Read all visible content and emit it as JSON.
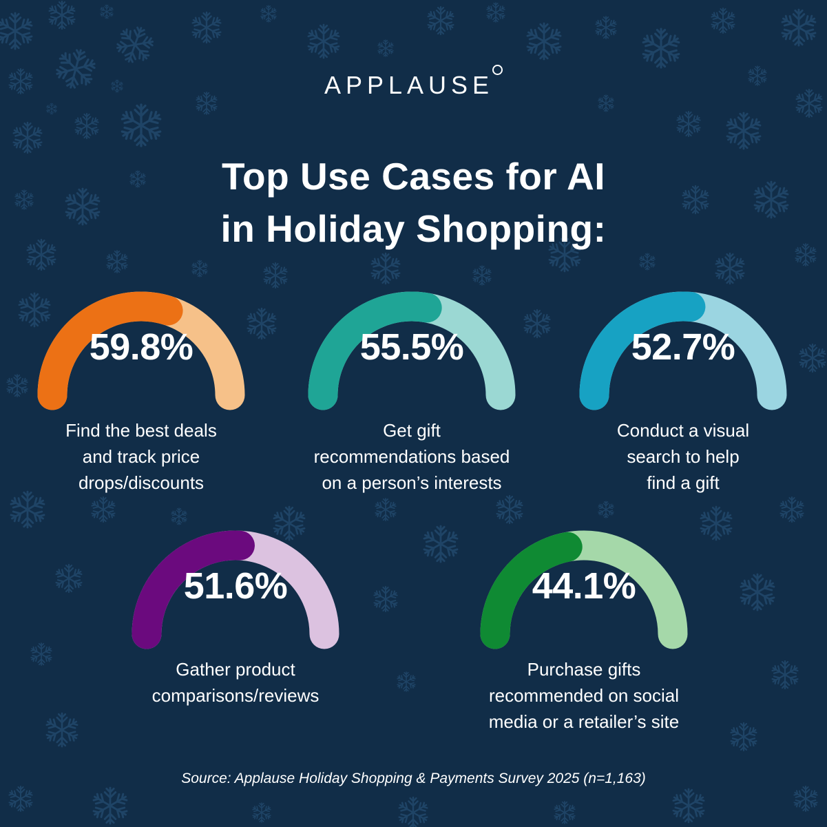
{
  "brand": {
    "name": "APPLAUSE"
  },
  "title": {
    "line1": "Top Use Cases for AI",
    "line2": "in Holiday Shopping:"
  },
  "colors": {
    "background": "#112d48",
    "snowflake": "#1f4466",
    "text": "#ffffff"
  },
  "gauges": [
    {
      "value": 59.8,
      "label_pct": "59.8%",
      "lines": [
        "Find the best deals",
        "and track price",
        "drops/discounts"
      ],
      "color": "#ec7115",
      "track": "#f6c189"
    },
    {
      "value": 55.5,
      "label_pct": "55.5%",
      "lines": [
        "Get gift",
        "recommendations based",
        "on a person’s interests"
      ],
      "color": "#1fa596",
      "track": "#9bd8d3"
    },
    {
      "value": 52.7,
      "label_pct": "52.7%",
      "lines": [
        "Conduct a visual",
        "search to help",
        "find a gift"
      ],
      "color": "#17a2c3",
      "track": "#9bd5e1"
    },
    {
      "value": 51.6,
      "label_pct": "51.6%",
      "lines": [
        "Gather product",
        "comparisons/reviews"
      ],
      "color": "#6b0a7e",
      "track": "#dcc2e0"
    },
    {
      "value": 44.1,
      "label_pct": "44.1%",
      "lines": [
        "Purchase gifts",
        "recommended on social",
        "media or a retailer’s site"
      ],
      "color": "#0f8a33",
      "track": "#a5d8a9"
    }
  ],
  "source": "Source: Applause Holiday Shopping & Payments Survey 2025 (n=1,163)",
  "chart_data": {
    "type": "gauge",
    "title": "Top Use Cases for AI in Holiday Shopping:",
    "categories": [
      "Find the best deals and track price drops/discounts",
      "Get gift recommendations based on a person’s interests",
      "Conduct a visual search to help find a gift",
      "Gather product comparisons/reviews",
      "Purchase gifts recommended on social media or a retailer’s site"
    ],
    "values": [
      59.8,
      55.5,
      52.7,
      51.6,
      44.1
    ],
    "unit": "%",
    "ylim": [
      0,
      100
    ],
    "source": "Applause Holiday Shopping & Payments Survey 2025 (n=1,163)"
  }
}
